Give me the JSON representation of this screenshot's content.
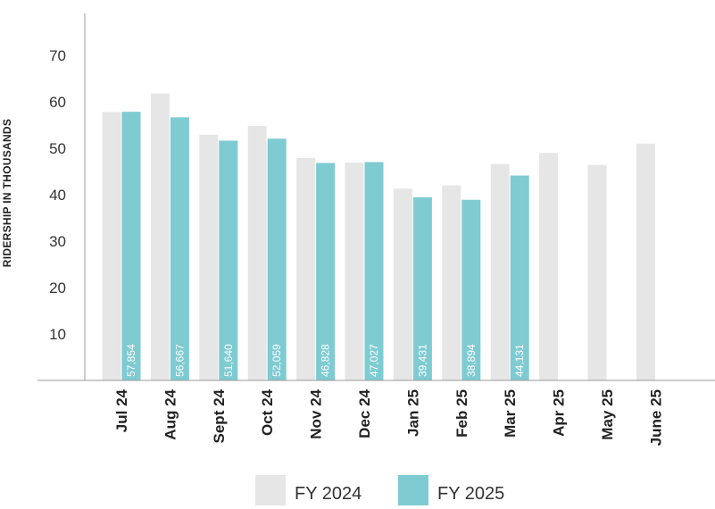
{
  "chart_data": {
    "type": "bar",
    "ylabel": "RIDERSHIP IN THOUSANDS",
    "xlabel": "",
    "ylim": [
      0,
      80
    ],
    "yticks": [
      10,
      20,
      30,
      40,
      50,
      60,
      70
    ],
    "grid": false,
    "legend": "bottom",
    "categories": [
      "Jul 24",
      "Aug 24",
      "Sept 24",
      "Oct 24",
      "Nov 24",
      "Dec 24",
      "Jan 25",
      "Feb 25",
      "Mar 25",
      "Apr 25",
      "May 25",
      "June 25"
    ],
    "series": [
      {
        "name": "FY 2024",
        "color": "#e6e6e6",
        "values": [
          57.8,
          61.8,
          52.9,
          54.8,
          47.9,
          46.9,
          41.3,
          42.0,
          46.6,
          49.0,
          46.4,
          51.0
        ]
      },
      {
        "name": "FY 2025",
        "color": "#7fcbd2",
        "values": [
          57.854,
          56.667,
          51.64,
          52.059,
          46.828,
          47.027,
          39.431,
          38.894,
          44.131,
          null,
          null,
          null
        ],
        "labels": [
          "57,854",
          "56,667",
          "51,640",
          "52,059",
          "46,828",
          "47,027",
          "39,431",
          "38,894",
          "44,131",
          "",
          "",
          ""
        ]
      }
    ]
  }
}
